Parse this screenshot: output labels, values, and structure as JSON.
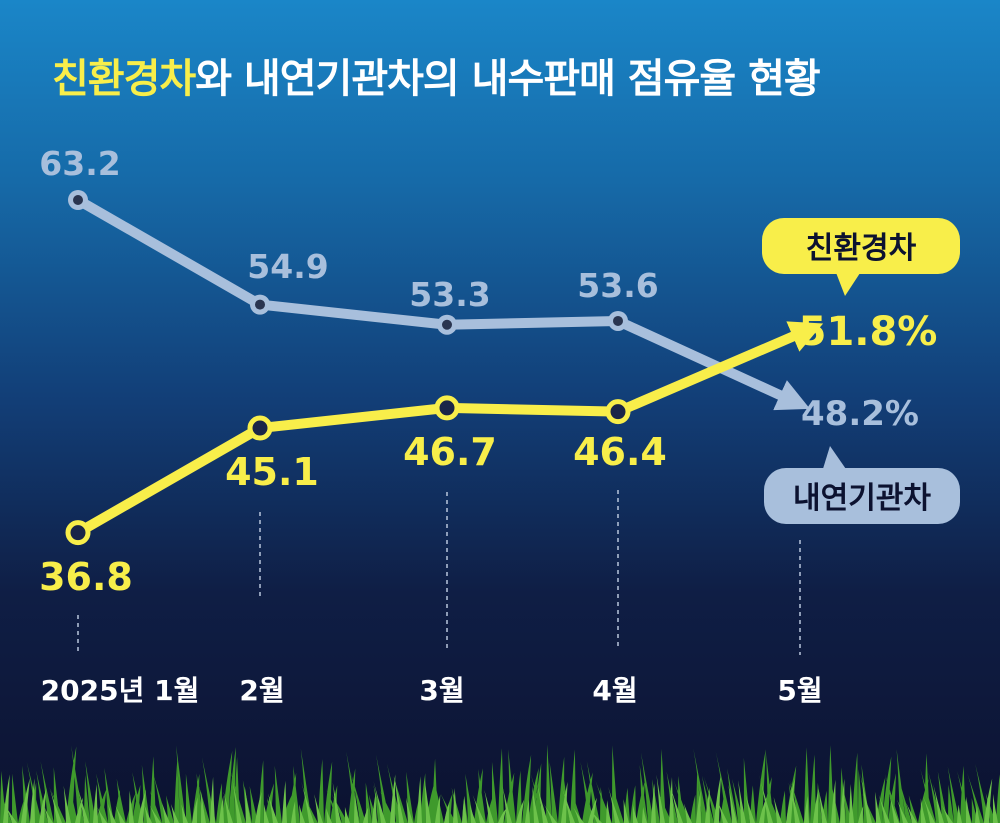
{
  "chart_data": {
    "type": "line",
    "title": "친환경차와 내연기관차의 내수판매 점유율 현황",
    "title_highlight": "친환경차",
    "title_rest": "와 내연기관차의 내수판매 점유율 현황",
    "categories": [
      "2025년 1월",
      "2월",
      "3월",
      "4월",
      "5월"
    ],
    "ylim": [
      30,
      70
    ],
    "grid": false,
    "series": [
      {
        "name": "내연기관차",
        "values": [
          63.2,
          54.9,
          53.3,
          53.6,
          48.2
        ],
        "labels": [
          "63.2",
          "54.9",
          "53.3",
          "53.6",
          "48.2%"
        ],
        "color": "#a8bfdc",
        "label_color": "#a8bfdc",
        "callout_bg": "#a8bfdc",
        "callout_text_color": "#0c1230"
      },
      {
        "name": "친환경차",
        "values": [
          36.8,
          45.1,
          46.7,
          46.4,
          51.8
        ],
        "labels": [
          "36.8",
          "45.1",
          "46.7",
          "46.4",
          "51.8%"
        ],
        "color": "#f8ee4a",
        "label_color": "#f8ee4a",
        "callout_bg": "#f8ee4a",
        "callout_text_color": "#0c1230"
      }
    ]
  }
}
